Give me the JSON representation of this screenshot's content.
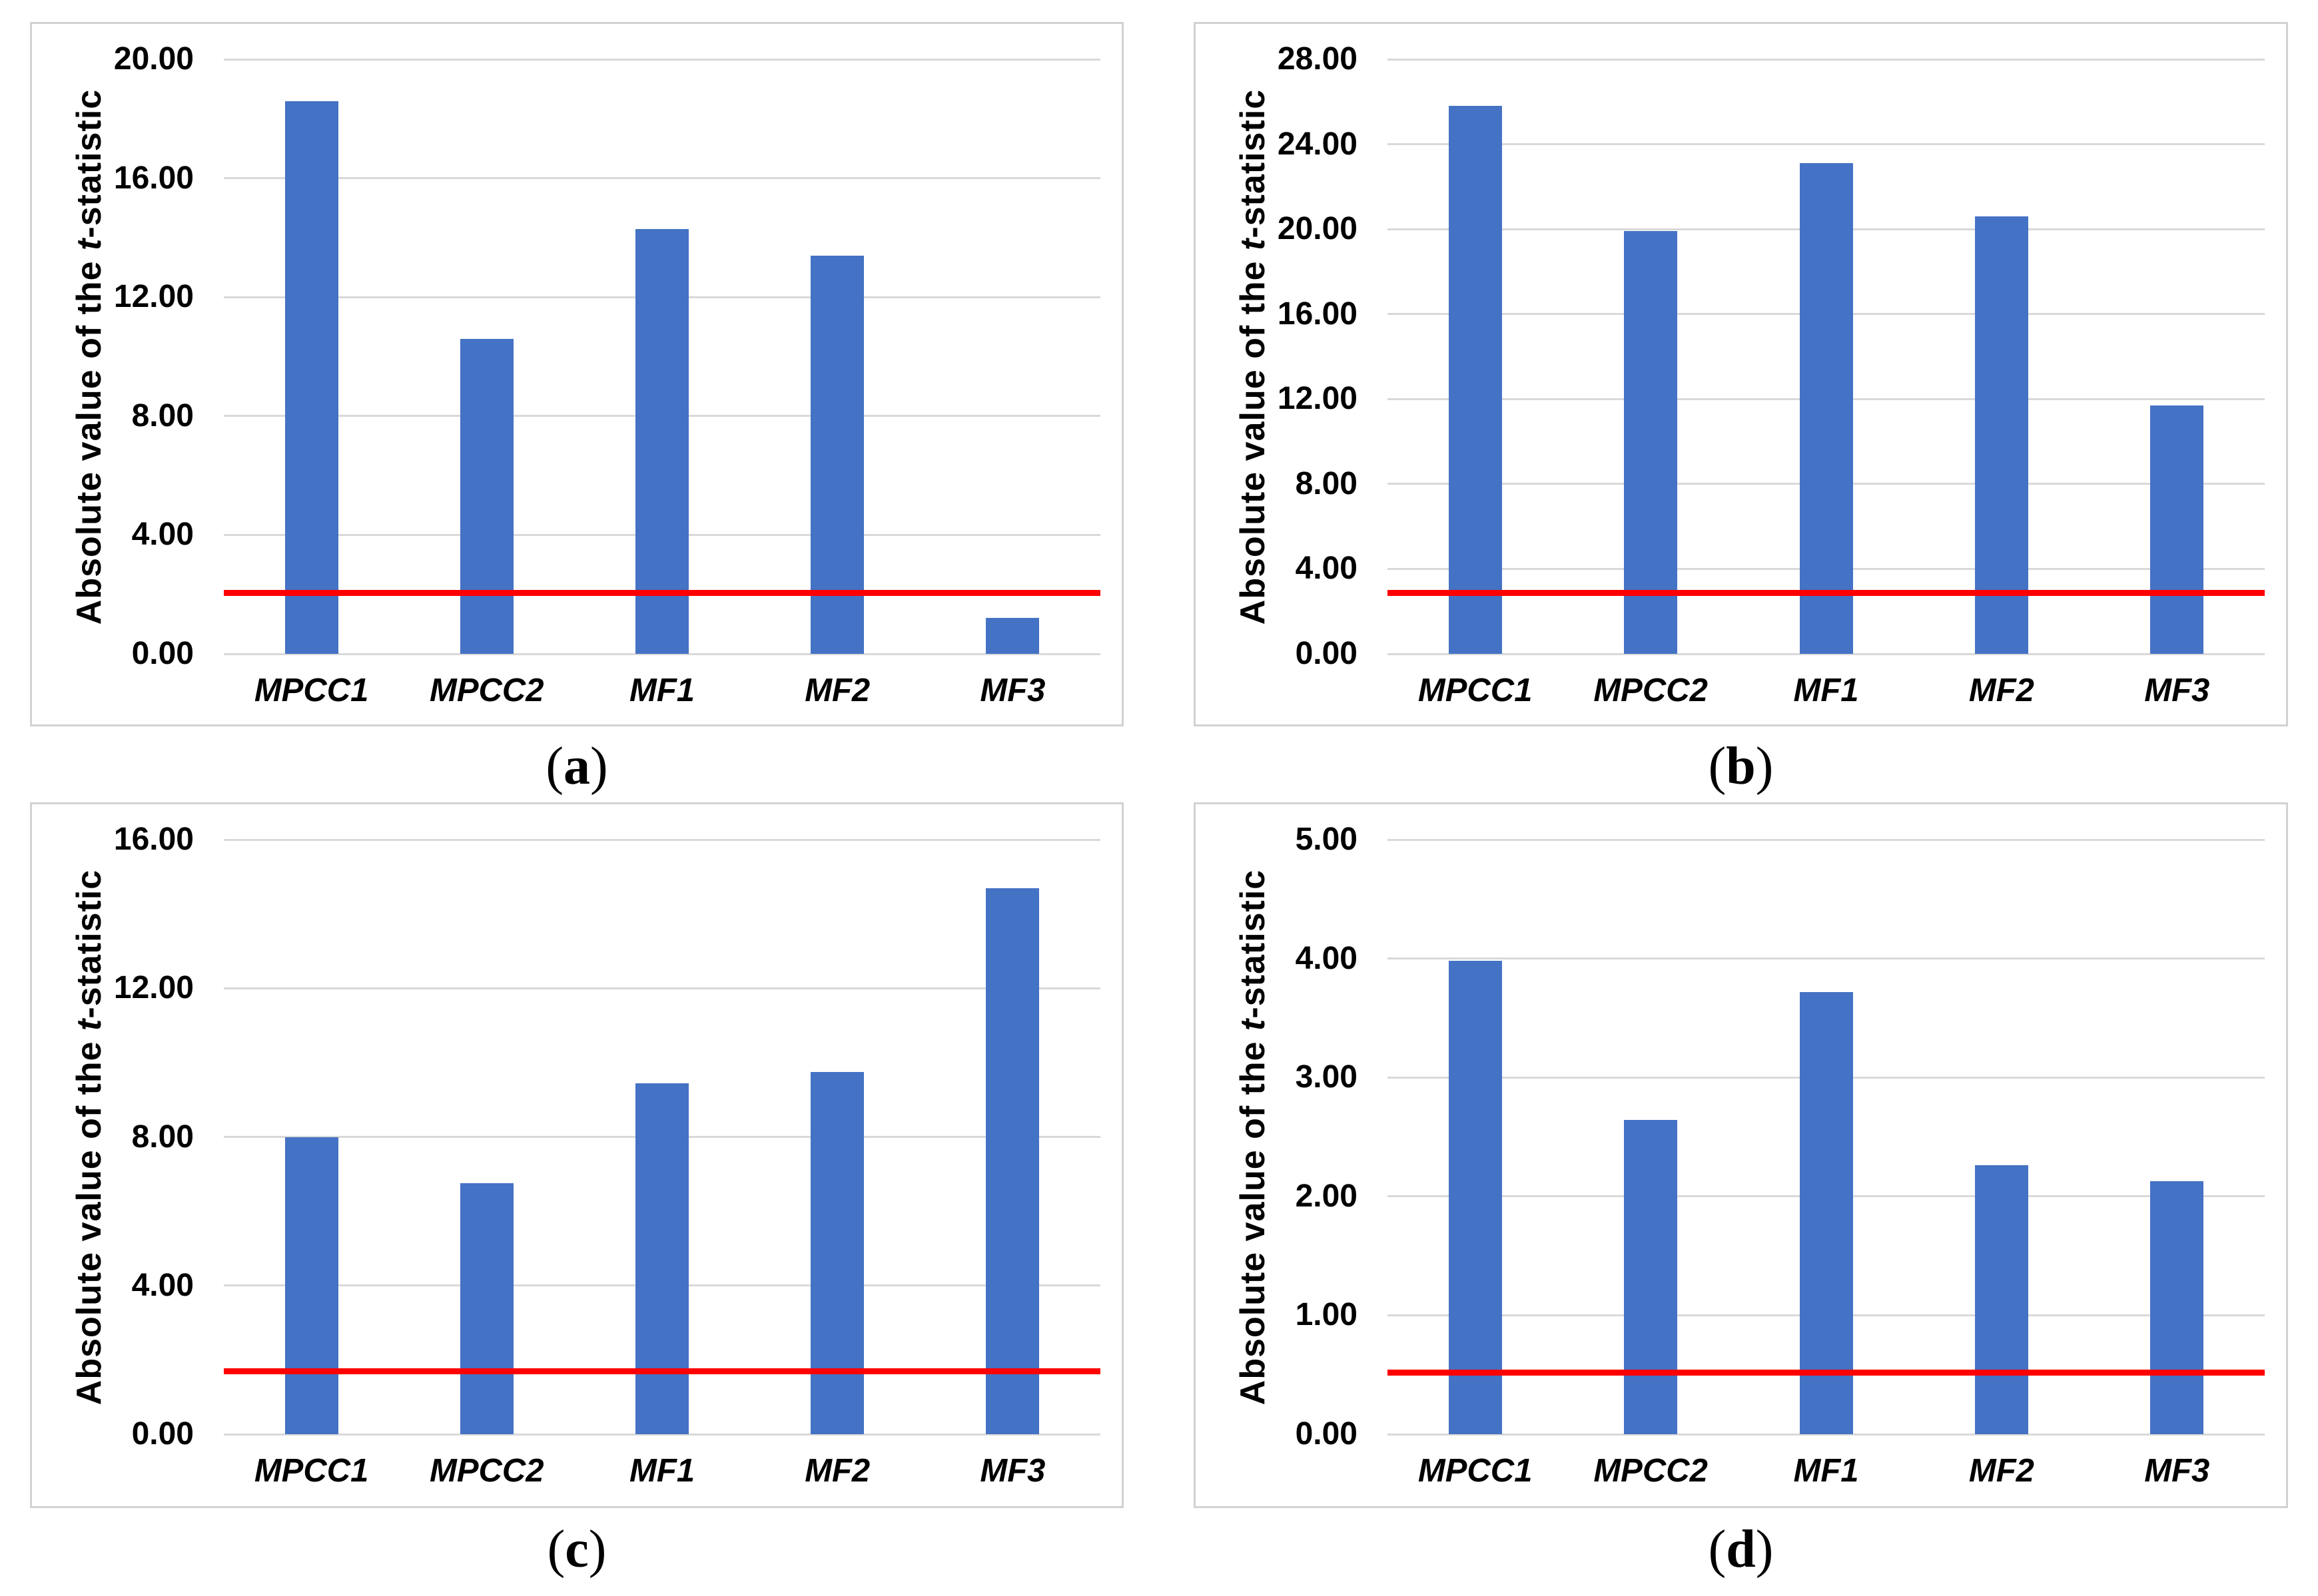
{
  "shared": {
    "ylabel": {
      "prefix": "Absolute value of the ",
      "italic": "t",
      "suffix": "-statistic"
    },
    "categories": [
      "MPCC1",
      "MPCC2",
      "MF1",
      "MF2",
      "MF3"
    ],
    "colors": {
      "bar": "#4472C4",
      "threshold": "#FF0000",
      "gridline": "#D9D9D9",
      "panel_border": "#D2D2D2",
      "text": "#000000",
      "background": "#FFFFFF"
    }
  },
  "chart_data": [
    {
      "id": "a",
      "type": "bar",
      "caption": {
        "open": "(",
        "letter": "a",
        "close": ")"
      },
      "title": "",
      "xlabel": "",
      "ylabel": "Absolute value of the t-statistic",
      "categories": [
        "MPCC1",
        "MPCC2",
        "MF1",
        "MF2",
        "MF3"
      ],
      "values": [
        18.6,
        10.6,
        14.3,
        13.4,
        1.2
      ],
      "threshold_line": 2.05,
      "ylim": [
        0,
        20
      ],
      "ytick_step": 4,
      "ytick_labels": [
        "20.00",
        "16.00",
        "12.00",
        "8.00",
        "4.00",
        "0.00"
      ],
      "grid": true,
      "legend": "none"
    },
    {
      "id": "b",
      "type": "bar",
      "caption": {
        "open": "(",
        "letter": "b",
        "close": ")"
      },
      "title": "",
      "xlabel": "",
      "ylabel": "Absolute value of the t-statistic",
      "categories": [
        "MPCC1",
        "MPCC2",
        "MF1",
        "MF2",
        "MF3"
      ],
      "values": [
        25.8,
        19.9,
        23.1,
        20.6,
        11.7
      ],
      "threshold_line": 2.87,
      "ylim": [
        0,
        28
      ],
      "ytick_step": 4,
      "ytick_labels": [
        "28.00",
        "24.00",
        "20.00",
        "16.00",
        "12.00",
        "8.00",
        "4.00",
        "0.00"
      ],
      "grid": true,
      "legend": "none"
    },
    {
      "id": "c",
      "type": "bar",
      "caption": {
        "open": "(",
        "letter": "c",
        "close": ")"
      },
      "title": "",
      "xlabel": "",
      "ylabel": "Absolute value of the t-statistic",
      "categories": [
        "MPCC1",
        "MPCC2",
        "MF1",
        "MF2",
        "MF3"
      ],
      "values": [
        8.0,
        6.75,
        9.45,
        9.75,
        14.7
      ],
      "threshold_line": 1.7,
      "ylim": [
        0,
        16
      ],
      "ytick_step": 4,
      "ytick_labels": [
        "16.00",
        "12.00",
        "8.00",
        "4.00",
        "0.00"
      ],
      "grid": true,
      "legend": "none"
    },
    {
      "id": "d",
      "type": "bar",
      "caption": {
        "open": "(",
        "letter": "d",
        "close": ")"
      },
      "title": "",
      "xlabel": "",
      "ylabel": "Absolute value of the t-statistic",
      "categories": [
        "MPCC1",
        "MPCC2",
        "MF1",
        "MF2",
        "MF3"
      ],
      "values": [
        3.98,
        2.64,
        3.72,
        2.26,
        2.13
      ],
      "threshold_line": 0.52,
      "ylim": [
        0,
        5
      ],
      "ytick_step": 1,
      "ytick_labels": [
        "5.00",
        "4.00",
        "3.00",
        "2.00",
        "1.00",
        "0.00"
      ],
      "grid": true,
      "legend": "none"
    }
  ]
}
